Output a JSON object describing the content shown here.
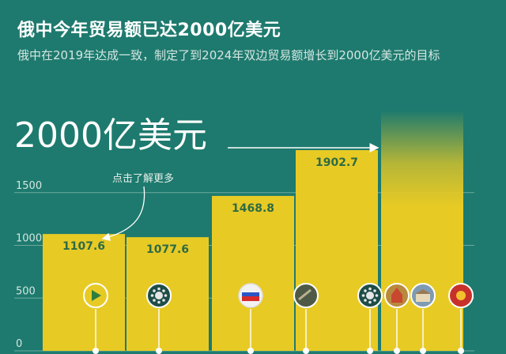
{
  "header": {
    "title": "俄中今年贸易额已达2000亿美元",
    "subtitle": "俄中在2019年达成一致，制定了到2024年双边贸易额增长到2000亿美元的目标"
  },
  "annotations": {
    "target": "2000亿美元",
    "hint": "点击了解更多"
  },
  "colors": {
    "background": "#1e7a6e",
    "bar": "#e8ca25",
    "bar_text": "#2d6b44",
    "grid": "#6fa99e",
    "axis_text": "#d5e6e2"
  },
  "icons": [
    "play-icon",
    "virus-icon",
    "russian-flag-icon",
    "military-photo-icon",
    "virus-icon",
    "cathedral-photo-icon",
    "building-photo-icon",
    "emblem-icon"
  ],
  "chart_data": {
    "type": "bar",
    "categories": [
      "",
      "",
      "",
      "",
      ""
    ],
    "values": [
      1107.6,
      1077.6,
      1468.8,
      1902.7,
      2000
    ],
    "data_labels": [
      "1107.6",
      "1077.6",
      "1468.8",
      "1902.7",
      ""
    ],
    "yticks": [
      "0",
      "500",
      "1000",
      "1500"
    ],
    "ylim": [
      0,
      2000
    ],
    "grid": true,
    "last_bar_fades": true
  }
}
